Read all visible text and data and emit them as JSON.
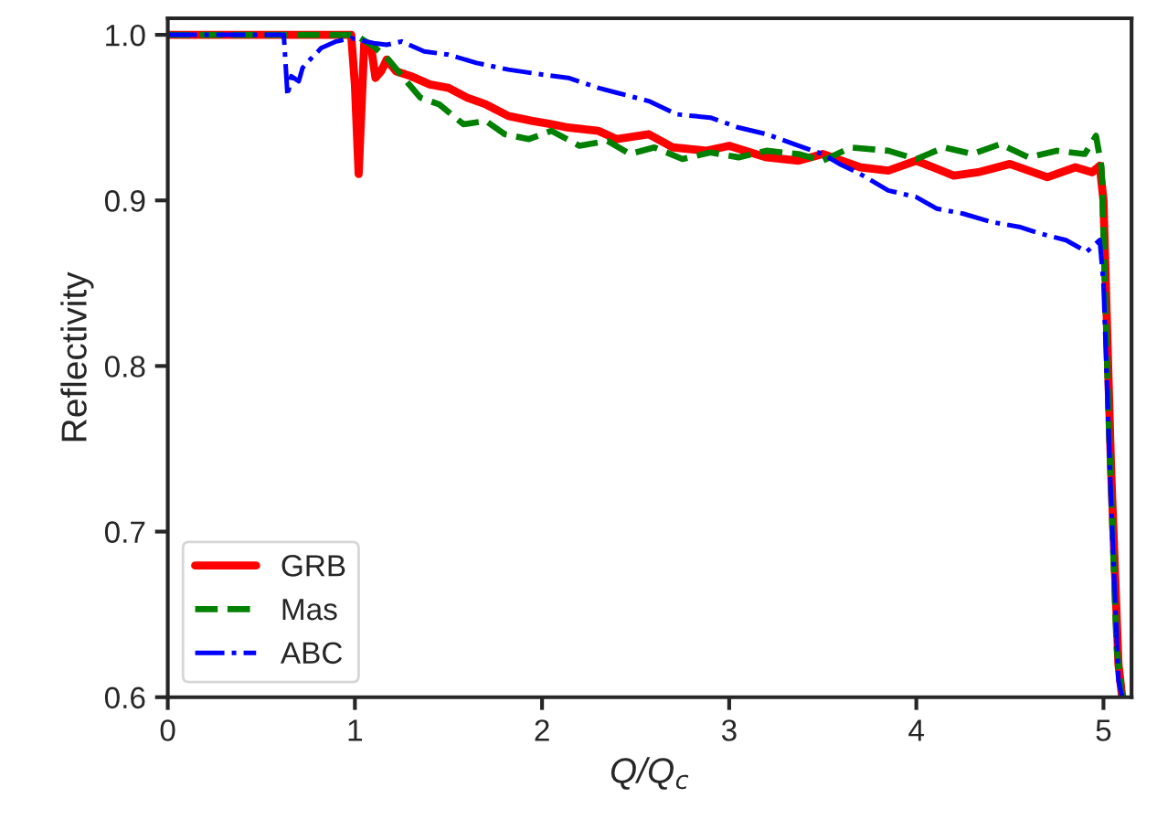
{
  "chart_data": {
    "type": "line",
    "xlabel": "Q/Q$_{c}$",
    "ylabel": "Reflectivity",
    "xlim": [
      0,
      5.15
    ],
    "ylim": [
      0.6,
      1.01
    ],
    "xticks": [
      0,
      1,
      2,
      3,
      4,
      5
    ],
    "yticks": [
      {
        "value": 0.6,
        "label": "0.6"
      },
      {
        "value": 0.7,
        "label": "0.7"
      },
      {
        "value": 0.8,
        "label": "0.8"
      },
      {
        "value": 0.9,
        "label": "0.9"
      },
      {
        "value": 1.0,
        "label": "1.0"
      }
    ],
    "grid": false,
    "legend": "bottom left",
    "series": [
      {
        "name": "GRB",
        "color": "#ff0000",
        "line_style": "solid",
        "x": [
          0,
          0.5,
          0.98,
          1.0,
          1.02,
          1.05,
          1.09,
          1.11,
          1.14,
          1.17,
          1.22,
          1.3,
          1.4,
          1.5,
          1.6,
          1.7,
          1.82,
          1.95,
          2.05,
          2.14,
          2.3,
          2.4,
          2.57,
          2.7,
          2.88,
          3.0,
          3.2,
          3.37,
          3.5,
          3.7,
          3.85,
          4.0,
          4.2,
          4.33,
          4.5,
          4.7,
          4.85,
          4.94,
          4.98,
          5.0,
          5.04,
          5.08,
          5.1
        ],
        "values": [
          1.0,
          1.0,
          1.0,
          0.97,
          0.916,
          0.995,
          0.99,
          0.974,
          0.978,
          0.985,
          0.978,
          0.975,
          0.97,
          0.968,
          0.962,
          0.958,
          0.951,
          0.948,
          0.946,
          0.944,
          0.942,
          0.937,
          0.94,
          0.932,
          0.93,
          0.933,
          0.926,
          0.924,
          0.928,
          0.92,
          0.918,
          0.924,
          0.915,
          0.917,
          0.922,
          0.914,
          0.92,
          0.917,
          0.921,
          0.9,
          0.74,
          0.62,
          0.6
        ]
      },
      {
        "name": "Mas",
        "color": "#008000",
        "line_style": "dashed",
        "x": [
          0,
          0.5,
          1.0,
          1.1,
          1.18,
          1.26,
          1.35,
          1.45,
          1.58,
          1.7,
          1.8,
          1.93,
          2.05,
          2.2,
          2.35,
          2.47,
          2.6,
          2.75,
          2.9,
          3.05,
          3.2,
          3.37,
          3.5,
          3.65,
          3.85,
          4.0,
          4.15,
          4.3,
          4.45,
          4.6,
          4.75,
          4.9,
          4.96,
          4.99,
          5.03,
          5.07,
          5.1
        ],
        "values": [
          1.0,
          1.0,
          1.0,
          0.993,
          0.985,
          0.974,
          0.962,
          0.958,
          0.946,
          0.948,
          0.94,
          0.937,
          0.942,
          0.933,
          0.936,
          0.928,
          0.932,
          0.925,
          0.929,
          0.926,
          0.93,
          0.928,
          0.924,
          0.932,
          0.93,
          0.925,
          0.932,
          0.928,
          0.934,
          0.926,
          0.93,
          0.928,
          0.939,
          0.92,
          0.76,
          0.63,
          0.6
        ]
      },
      {
        "name": "ABC",
        "color": "#0000ff",
        "line_style": "dashdot",
        "x": [
          0,
          0.62,
          0.64,
          0.66,
          0.7,
          0.72,
          0.76,
          0.82,
          0.9,
          0.98,
          1.1,
          1.17,
          1.25,
          1.37,
          1.5,
          1.65,
          1.82,
          2.0,
          2.14,
          2.3,
          2.4,
          2.57,
          2.72,
          2.9,
          3.05,
          3.2,
          3.37,
          3.5,
          3.59,
          3.7,
          3.85,
          4.0,
          4.11,
          4.25,
          4.4,
          4.55,
          4.66,
          4.8,
          4.91,
          4.98,
          5.0,
          5.04,
          5.08,
          5.1
        ],
        "values": [
          1.0,
          1.0,
          0.963,
          0.975,
          0.972,
          0.98,
          0.985,
          0.992,
          0.996,
          0.998,
          0.995,
          0.994,
          0.996,
          0.99,
          0.988,
          0.983,
          0.979,
          0.976,
          0.974,
          0.968,
          0.965,
          0.96,
          0.952,
          0.95,
          0.944,
          0.94,
          0.933,
          0.928,
          0.922,
          0.916,
          0.906,
          0.902,
          0.895,
          0.892,
          0.887,
          0.884,
          0.88,
          0.876,
          0.869,
          0.876,
          0.85,
          0.72,
          0.61,
          0.6
        ]
      }
    ]
  }
}
